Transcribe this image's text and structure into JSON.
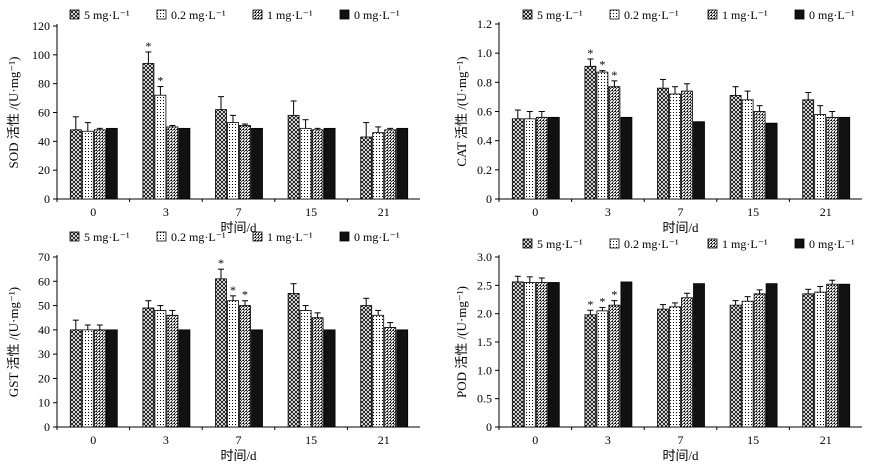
{
  "colors": {
    "axis": "#000000",
    "bar_black": "#111111",
    "background": "#ffffff"
  },
  "chart_data": [
    {
      "id": "sod",
      "type": "bar",
      "ylabel": "SOD 活性 /(U·mg⁻¹)",
      "xlabel": "时间/d",
      "categories": [
        "0",
        "3",
        "7",
        "15",
        "21"
      ],
      "ylim": [
        0,
        120
      ],
      "yticks": [
        0,
        20,
        40,
        60,
        80,
        100,
        120
      ],
      "ytick_labels": [
        "0",
        "20",
        "40",
        "60",
        "80",
        "100",
        "120"
      ],
      "legend_position": "top",
      "series": [
        {
          "name": "5 mg·L⁻¹",
          "pattern": "cross",
          "values": [
            48,
            94,
            62,
            58,
            43
          ],
          "errors": [
            9,
            8,
            9,
            10,
            10
          ],
          "stars": [
            false,
            true,
            false,
            false,
            false
          ]
        },
        {
          "name": "0.2 mg·L⁻¹",
          "pattern": "dots",
          "values": [
            47,
            72,
            53,
            49,
            46
          ],
          "errors": [
            6,
            6,
            5,
            6,
            4
          ],
          "stars": [
            false,
            true,
            false,
            false,
            false
          ]
        },
        {
          "name": "1 mg·L⁻¹",
          "pattern": "hatch",
          "values": [
            48,
            50,
            51,
            48,
            48
          ],
          "errors": [
            1,
            1,
            1,
            1,
            1
          ],
          "stars": [
            false,
            false,
            false,
            false,
            false
          ]
        },
        {
          "name": "0 mg·L⁻¹",
          "pattern": "black",
          "values": [
            49,
            49,
            49,
            49,
            49
          ],
          "errors": [
            0,
            0,
            0,
            0,
            0
          ],
          "stars": [
            false,
            false,
            false,
            false,
            false
          ]
        }
      ]
    },
    {
      "id": "cat",
      "type": "bar",
      "ylabel": "CAT 活性 /(U·mg⁻¹)",
      "xlabel": "时间/d",
      "categories": [
        "0",
        "3",
        "7",
        "15",
        "21"
      ],
      "ylim": [
        0,
        1.2
      ],
      "yticks": [
        0,
        0.2,
        0.4,
        0.6,
        0.8,
        1.0,
        1.2
      ],
      "ytick_labels": [
        "0",
        "0.2",
        "0.4",
        "0.6",
        "0.8",
        "1.0",
        "1.2"
      ],
      "legend_position": "top",
      "series": [
        {
          "name": "5 mg·L⁻¹",
          "pattern": "cross",
          "values": [
            0.55,
            0.91,
            0.76,
            0.71,
            0.68
          ],
          "errors": [
            0.06,
            0.05,
            0.06,
            0.06,
            0.05
          ],
          "stars": [
            false,
            true,
            false,
            false,
            false
          ]
        },
        {
          "name": "0.2 mg·L⁻¹",
          "pattern": "dots",
          "values": [
            0.55,
            0.87,
            0.72,
            0.68,
            0.58
          ],
          "errors": [
            0.05,
            0.01,
            0.05,
            0.06,
            0.06
          ],
          "stars": [
            false,
            true,
            false,
            false,
            false
          ]
        },
        {
          "name": "1 mg·L⁻¹",
          "pattern": "hatch",
          "values": [
            0.56,
            0.77,
            0.74,
            0.6,
            0.56
          ],
          "errors": [
            0.04,
            0.04,
            0.05,
            0.04,
            0.04
          ],
          "stars": [
            false,
            true,
            false,
            false,
            false
          ]
        },
        {
          "name": "0 mg·L⁻¹",
          "pattern": "black",
          "values": [
            0.56,
            0.56,
            0.53,
            0.52,
            0.56
          ],
          "errors": [
            0,
            0,
            0,
            0,
            0
          ],
          "stars": [
            false,
            false,
            false,
            false,
            false
          ]
        }
      ]
    },
    {
      "id": "gst",
      "type": "bar",
      "ylabel": "GST 活性 /(U·mg⁻¹)",
      "xlabel": "时间/d",
      "categories": [
        "0",
        "3",
        "7",
        "15",
        "21"
      ],
      "ylim": [
        0,
        70
      ],
      "yticks": [
        0,
        10,
        20,
        30,
        40,
        50,
        60,
        70
      ],
      "ytick_labels": [
        "0",
        "10",
        "20",
        "30",
        "40",
        "50",
        "60",
        "70"
      ],
      "legend_position": "top",
      "series": [
        {
          "name": "5 mg·L⁻¹",
          "pattern": "cross",
          "values": [
            40,
            49,
            61,
            55,
            50
          ],
          "errors": [
            4,
            3,
            4,
            4,
            3
          ],
          "stars": [
            false,
            false,
            true,
            false,
            false
          ]
        },
        {
          "name": "0.2 mg·L⁻¹",
          "pattern": "dots",
          "values": [
            40,
            48,
            52,
            48,
            46
          ],
          "errors": [
            2,
            2,
            2,
            2,
            2
          ],
          "stars": [
            false,
            false,
            true,
            false,
            false
          ]
        },
        {
          "name": "1 mg·L⁻¹",
          "pattern": "hatch",
          "values": [
            40,
            46,
            50,
            45,
            41
          ],
          "errors": [
            2,
            2,
            2,
            2,
            2
          ],
          "stars": [
            false,
            false,
            true,
            false,
            false
          ]
        },
        {
          "name": "0 mg·L⁻¹",
          "pattern": "black",
          "values": [
            40,
            40,
            40,
            40,
            40
          ],
          "errors": [
            0,
            0,
            0,
            0,
            0
          ],
          "stars": [
            false,
            false,
            false,
            false,
            false
          ]
        }
      ]
    },
    {
      "id": "pod",
      "type": "bar",
      "ylabel": "POD 活性 /(U·mg⁻¹)",
      "xlabel": "时间/d",
      "categories": [
        "0",
        "3",
        "7",
        "15",
        "21"
      ],
      "ylim": [
        0,
        3.0
      ],
      "yticks": [
        0,
        0.5,
        1.0,
        1.5,
        2.0,
        2.5,
        3.0
      ],
      "ytick_labels": [
        "0",
        "0.5",
        "1.0",
        "1.5",
        "2.0",
        "2.5",
        "3.0"
      ],
      "legend_position": "top",
      "series": [
        {
          "name": "5 mg·L⁻¹",
          "pattern": "cross",
          "values": [
            2.56,
            1.98,
            2.08,
            2.15,
            2.35
          ],
          "errors": [
            0.1,
            0.08,
            0.08,
            0.08,
            0.08
          ],
          "stars": [
            false,
            true,
            false,
            false,
            false
          ]
        },
        {
          "name": "0.2 mg·L⁻¹",
          "pattern": "dots",
          "values": [
            2.55,
            2.05,
            2.12,
            2.22,
            2.38
          ],
          "errors": [
            0.1,
            0.06,
            0.07,
            0.08,
            0.1
          ],
          "stars": [
            false,
            true,
            false,
            false,
            false
          ]
        },
        {
          "name": "1 mg·L⁻¹",
          "pattern": "hatch",
          "values": [
            2.55,
            2.15,
            2.28,
            2.35,
            2.52
          ],
          "errors": [
            0.08,
            0.08,
            0.08,
            0.07,
            0.07
          ],
          "stars": [
            false,
            true,
            false,
            false,
            false
          ]
        },
        {
          "name": "0 mg·L⁻¹",
          "pattern": "black",
          "values": [
            2.55,
            2.56,
            2.53,
            2.53,
            2.52
          ],
          "errors": [
            0,
            0,
            0,
            0,
            0
          ],
          "stars": [
            false,
            false,
            false,
            false,
            false
          ]
        }
      ]
    }
  ]
}
